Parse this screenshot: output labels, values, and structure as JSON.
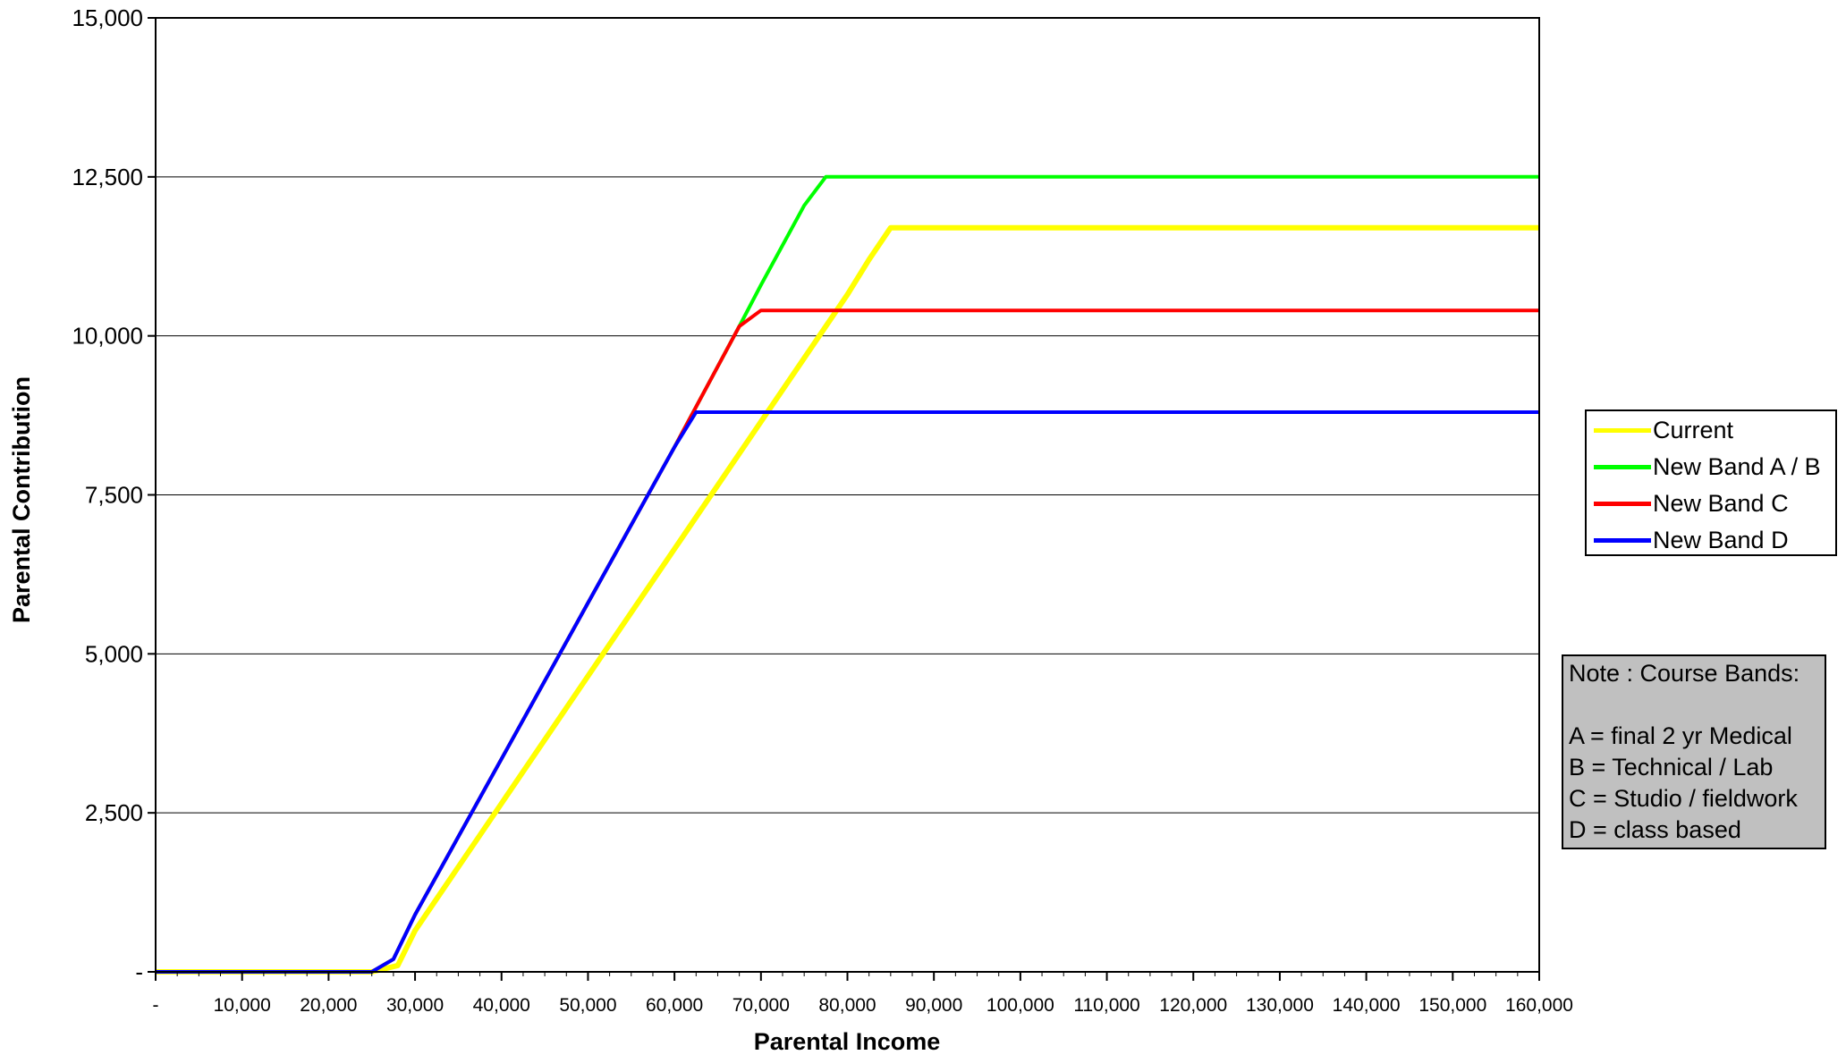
{
  "chart_data": {
    "type": "line",
    "title": "",
    "xlabel": "Parental Income",
    "ylabel": "Parental Contribution",
    "xlim": [
      0,
      160000
    ],
    "ylim": [
      0,
      15000
    ],
    "x_ticks": [
      {
        "value": 0,
        "label": "-"
      },
      {
        "value": 10000,
        "label": "10,000"
      },
      {
        "value": 20000,
        "label": "20,000"
      },
      {
        "value": 30000,
        "label": "30,000"
      },
      {
        "value": 40000,
        "label": "40,000"
      },
      {
        "value": 50000,
        "label": "50,000"
      },
      {
        "value": 60000,
        "label": "60,000"
      },
      {
        "value": 70000,
        "label": "70,000"
      },
      {
        "value": 80000,
        "label": "80,000"
      },
      {
        "value": 90000,
        "label": "90,000"
      },
      {
        "value": 100000,
        "label": "100,000"
      },
      {
        "value": 110000,
        "label": "110,000"
      },
      {
        "value": 120000,
        "label": "120,000"
      },
      {
        "value": 130000,
        "label": "130,000"
      },
      {
        "value": 140000,
        "label": "140,000"
      },
      {
        "value": 150000,
        "label": "150,000"
      },
      {
        "value": 160000,
        "label": "160,000"
      }
    ],
    "y_ticks": [
      {
        "value": 0,
        "label": "-"
      },
      {
        "value": 2500,
        "label": "2,500"
      },
      {
        "value": 5000,
        "label": "5,000"
      },
      {
        "value": 7500,
        "label": "7,500"
      },
      {
        "value": 10000,
        "label": "10,000"
      },
      {
        "value": 12500,
        "label": "12,500"
      },
      {
        "value": 15000,
        "label": "15,000"
      }
    ],
    "grid": "horizontal",
    "legend_position": "right",
    "series": [
      {
        "name": "Current",
        "color": "#ffff00",
        "x": [
          0,
          25000,
          28000,
          30000,
          40000,
          50000,
          60000,
          70000,
          80000,
          82500,
          85000,
          160000
        ],
        "y": [
          0,
          0,
          100,
          650,
          2650,
          4650,
          6650,
          8650,
          10650,
          11200,
          11700,
          11700
        ]
      },
      {
        "name": "New Band A / B",
        "color": "#00ff00",
        "x": [
          0,
          25000,
          27500,
          30000,
          40000,
          50000,
          60000,
          67500,
          70000,
          75000,
          77500,
          160000
        ],
        "y": [
          0,
          0,
          200,
          900,
          3350,
          5800,
          8250,
          10150,
          10800,
          12050,
          12500,
          12500
        ]
      },
      {
        "name": "New Band C",
        "color": "#ff0000",
        "x": [
          0,
          25000,
          27500,
          30000,
          40000,
          50000,
          60000,
          67500,
          70000,
          160000
        ],
        "y": [
          0,
          0,
          200,
          900,
          3350,
          5800,
          8250,
          10150,
          10400,
          10400
        ]
      },
      {
        "name": "New Band D",
        "color": "#0000ff",
        "x": [
          0,
          25000,
          27500,
          30000,
          40000,
          50000,
          60000,
          62500,
          160000
        ],
        "y": [
          0,
          0,
          200,
          900,
          3350,
          5800,
          8250,
          8800,
          8800
        ]
      }
    ]
  },
  "note": {
    "lines": [
      "Note : Course Bands:",
      "",
      "A = final 2 yr Medical",
      "B = Technical / Lab",
      "C = Studio / fieldwork",
      "D = class based"
    ]
  }
}
